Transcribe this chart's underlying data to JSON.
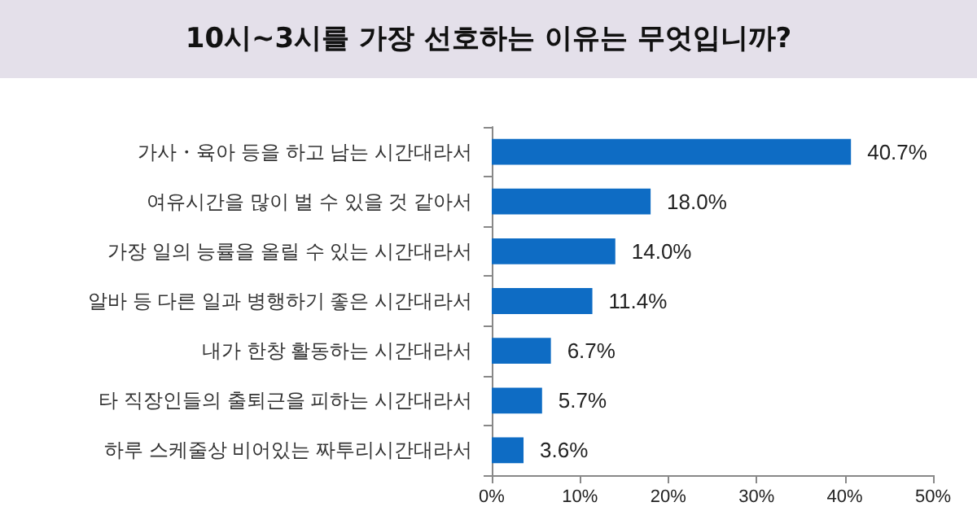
{
  "chart_data": {
    "type": "bar",
    "orientation": "horizontal",
    "title": "10시~3시를 가장 선호하는 이유는 무엇입니까?",
    "categories": [
      "가사・육아 등을 하고 남는 시간대라서",
      "여유시간을 많이 벌 수 있을 것 같아서",
      "가장 일의 능률을 올릴 수 있는 시간대라서",
      "알바 등 다른 일과 병행하기 좋은 시간대라서",
      "내가 한창 활동하는 시간대라서",
      "타 직장인들의 출퇴근을 피하는 시간대라서",
      "하루 스케줄상 비어있는 짜투리시간대라서"
    ],
    "values": [
      40.7,
      18.0,
      14.0,
      11.4,
      6.7,
      5.7,
      3.6
    ],
    "value_labels": [
      "40.7%",
      "18.0%",
      "14.0%",
      "11.4%",
      "6.7%",
      "5.7%",
      "3.6%"
    ],
    "color": "#0e6cc4",
    "xlim": [
      0,
      50
    ],
    "xticks": [
      {
        "value": 0,
        "label": "0%"
      },
      {
        "value": 10,
        "label": "10%"
      },
      {
        "value": 20,
        "label": "20%"
      },
      {
        "value": 30,
        "label": "30%"
      },
      {
        "value": 40,
        "label": "40%"
      },
      {
        "value": 50,
        "label": "50%"
      }
    ],
    "grid": false
  }
}
